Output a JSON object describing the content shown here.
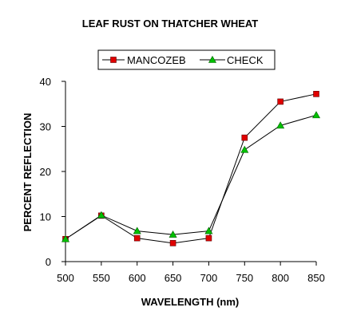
{
  "chart_data": {
    "type": "line",
    "title": "LEAF RUST ON THATCHER WHEAT",
    "xlabel": "WAVELENGTH (nm)",
    "ylabel": "PERCENT REFLECTION",
    "x": [
      500,
      550,
      600,
      650,
      700,
      750,
      800,
      850
    ],
    "xlim": [
      500,
      850
    ],
    "xticks": [
      500,
      550,
      600,
      650,
      700,
      750,
      800,
      850
    ],
    "ylim": [
      0,
      40
    ],
    "yticks": [
      0,
      10,
      20,
      30,
      40
    ],
    "grid": false,
    "legend_position": "top-center",
    "series": [
      {
        "name": "MANCOZEB",
        "values": [
          5.0,
          10.2,
          5.2,
          4.1,
          5.2,
          27.5,
          35.5,
          37.2
        ],
        "marker": "square",
        "color": "#e00000"
      },
      {
        "name": "CHECK",
        "values": [
          5.0,
          10.3,
          6.8,
          6.0,
          6.8,
          24.8,
          30.2,
          32.5
        ],
        "marker": "triangle",
        "color": "#00c000"
      }
    ]
  }
}
